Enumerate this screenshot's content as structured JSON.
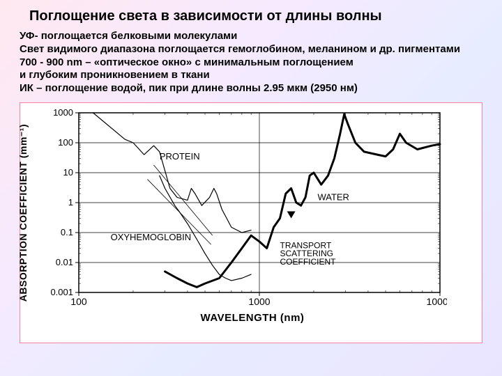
{
  "title": "Поглощение света в зависимости от длины волны",
  "description": {
    "line1": "УФ- поглощается белковыми молекулами",
    "line2": "Свет видимого диапазона поглощается гемоглобином, меланином и др. пигментами",
    "line3": "700 - 900 nm – «оптическое окно» с минимальным поглощением",
    "line4": "и глубоким проникновением в ткани",
    "line5": "ИК – поглощение водой, пик при длине волны 2.95 мкм (2950 нм)"
  },
  "chart": {
    "type": "line",
    "x_axis": {
      "label": "WAVELENGTH (nm)",
      "scale": "log",
      "min": 100,
      "max": 10000,
      "ticks": [
        100,
        1000,
        10000
      ],
      "tick_labels": [
        "100",
        "1000",
        "10000"
      ],
      "fontsize": 14
    },
    "y_axis": {
      "label": "ABSORPTION COEFFICIENT (mm⁻¹)",
      "scale": "log",
      "min": 0.001,
      "max": 1000,
      "ticks": [
        0.001,
        0.01,
        0.1,
        1,
        10,
        100,
        1000
      ],
      "tick_labels": [
        "0.001",
        "0.01",
        "0.1",
        "1",
        "10",
        "100",
        "1000"
      ],
      "fontsize": 14
    },
    "background_color": "#ffffff",
    "border_color": "#ff80a0",
    "grid_color": "#000000",
    "title_fontsize": 20,
    "label_fontsize": 15,
    "annotation_fontsize": 12,
    "annotations": {
      "protein": "PROTEIN",
      "oxyhemoglobin": "OXYHEMOGLOBIN",
      "water": "WATER",
      "transport": "TRANSPORT SCATTERING COEFFICIENT"
    },
    "series": {
      "thin1": {
        "stroke": "#000000",
        "width": 1.2,
        "points": [
          [
            120,
            1000
          ],
          [
            180,
            130
          ],
          [
            200,
            100
          ],
          [
            230,
            40
          ],
          [
            260,
            80
          ],
          [
            280,
            50
          ],
          [
            320,
            3
          ],
          [
            350,
            1.5
          ],
          [
            400,
            1.2
          ],
          [
            420,
            3
          ],
          [
            440,
            2
          ],
          [
            480,
            0.8
          ],
          [
            530,
            1.5
          ],
          [
            560,
            3
          ],
          [
            580,
            2
          ],
          [
            620,
            0.6
          ],
          [
            700,
            0.15
          ],
          [
            800,
            0.1
          ],
          [
            900,
            0.12
          ]
        ]
      },
      "thin2": {
        "stroke": "#000000",
        "width": 1.2,
        "points": [
          [
            280,
            8
          ],
          [
            300,
            3
          ],
          [
            340,
            0.8
          ],
          [
            360,
            0.5
          ],
          [
            400,
            0.2
          ],
          [
            450,
            0.06
          ],
          [
            500,
            0.02
          ],
          [
            550,
            0.008
          ],
          [
            600,
            0.004
          ],
          [
            650,
            0.003
          ],
          [
            700,
            0.0025
          ],
          [
            800,
            0.003
          ],
          [
            900,
            0.004
          ]
        ]
      },
      "thick": {
        "stroke": "#000000",
        "width": 3,
        "points": [
          [
            300,
            0.005
          ],
          [
            350,
            0.003
          ],
          [
            400,
            0.002
          ],
          [
            450,
            0.0015
          ],
          [
            500,
            0.002
          ],
          [
            600,
            0.003
          ],
          [
            700,
            0.01
          ],
          [
            800,
            0.03
          ],
          [
            900,
            0.08
          ],
          [
            1000,
            0.05
          ],
          [
            1100,
            0.03
          ],
          [
            1200,
            0.15
          ],
          [
            1300,
            0.3
          ],
          [
            1400,
            2
          ],
          [
            1500,
            3
          ],
          [
            1600,
            1
          ],
          [
            1700,
            0.8
          ],
          [
            1800,
            1.5
          ],
          [
            1900,
            8
          ],
          [
            2000,
            10
          ],
          [
            2200,
            4
          ],
          [
            2400,
            8
          ],
          [
            2600,
            30
          ],
          [
            2800,
            200
          ],
          [
            2950,
            900
          ],
          [
            3100,
            400
          ],
          [
            3400,
            100
          ],
          [
            3800,
            50
          ],
          [
            4500,
            40
          ],
          [
            5000,
            35
          ],
          [
            5500,
            60
          ],
          [
            6000,
            200
          ],
          [
            6500,
            100
          ],
          [
            7500,
            60
          ],
          [
            9000,
            80
          ],
          [
            10000,
            90
          ]
        ]
      }
    }
  }
}
